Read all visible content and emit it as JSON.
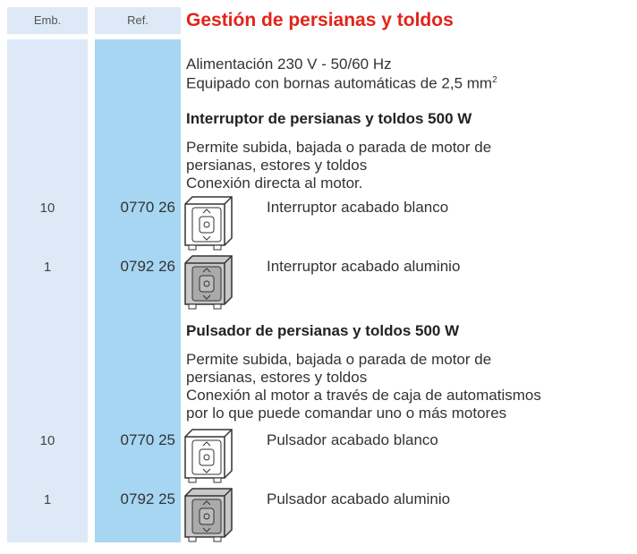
{
  "header": {
    "emb": "Emb.",
    "ref": "Ref.",
    "title": "Gestión de persianas y toldos"
  },
  "intro": {
    "lines": [
      "Alimentación 230 V - 50/60 Hz",
      "Equipado con bornas automáticas de 2,5 mm"
    ],
    "superscript": "2"
  },
  "sections": [
    {
      "heading": "Interruptor de persianas y toldos 500 W",
      "description": [
        "Permite subida, bajada o parada de motor de",
        "persianas, estores y toldos",
        "Conexión directa al motor."
      ],
      "items": [
        {
          "emb": 10,
          "ref": "0770 26",
          "label": "Interruptor acabado blanco"
        },
        {
          "emb": 1,
          "ref": "0792 26",
          "label": "Interruptor acabado aluminio"
        }
      ]
    },
    {
      "heading": "Pulsador de persianas y toldos 500 W",
      "description": [
        "Permite subida, bajada o parada de motor de",
        "persianas, estores y toldos",
        "Conexión al motor a través de caja de automatismos",
        "por lo que puede comandar uno o más motores"
      ],
      "items": [
        {
          "emb": 10,
          "ref": "0770 25",
          "label": "Pulsador acabado blanco"
        },
        {
          "emb": 1,
          "ref": "0792 25",
          "label": "Pulsador acabado aluminio"
        }
      ]
    }
  ]
}
